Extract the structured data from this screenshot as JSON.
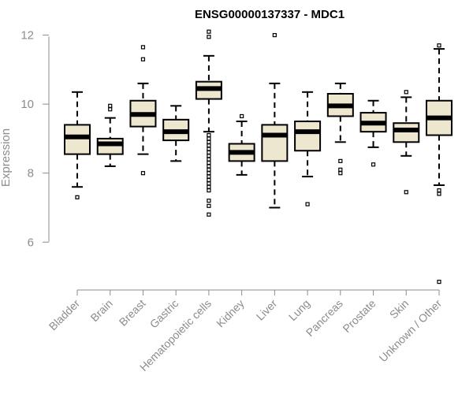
{
  "chart_data": {
    "type": "box",
    "title": "ENSG00000137337 - MDC1",
    "xlabel": "",
    "ylabel": "Expression",
    "ylim": [
      4.75,
      12.15
    ],
    "yticks": [
      "6",
      "8",
      "10",
      "12"
    ],
    "box_fill": "#ede7cf",
    "categories": [
      "Bladder",
      "Brain",
      "Breast",
      "Gastric",
      "Hematopoietic cells",
      "Kidney",
      "Liver",
      "Lung",
      "Pancreas",
      "Prostate",
      "Skin",
      "Unknown / Other"
    ],
    "series": [
      {
        "category": "Bladder",
        "whisker_low": 7.6,
        "q1": 8.55,
        "median": 9.05,
        "q3": 9.4,
        "whisker_high": 10.35,
        "outliers": [
          7.3
        ]
      },
      {
        "category": "Brain",
        "whisker_low": 8.2,
        "q1": 8.55,
        "median": 8.85,
        "q3": 9.0,
        "whisker_high": 9.6,
        "outliers": [
          9.85,
          9.95
        ]
      },
      {
        "category": "Breast",
        "whisker_low": 8.55,
        "q1": 9.35,
        "median": 9.7,
        "q3": 10.1,
        "whisker_high": 10.6,
        "outliers": [
          11.65,
          11.3,
          8.0
        ]
      },
      {
        "category": "Gastric",
        "whisker_low": 8.35,
        "q1": 8.95,
        "median": 9.2,
        "q3": 9.55,
        "whisker_high": 9.95,
        "outliers": []
      },
      {
        "category": "Hematopoietic cells",
        "whisker_low": 9.2,
        "q1": 10.15,
        "median": 10.45,
        "q3": 10.65,
        "whisker_high": 11.4,
        "outliers": [
          12.1,
          11.95,
          9.1,
          9.0,
          8.9,
          8.8,
          8.7,
          8.6,
          8.5,
          8.4,
          8.3,
          8.2,
          8.1,
          8.0,
          7.9,
          7.8,
          7.7,
          7.6,
          7.5,
          7.2,
          7.05,
          6.8
        ]
      },
      {
        "category": "Kidney",
        "whisker_low": 7.95,
        "q1": 8.35,
        "median": 8.6,
        "q3": 8.85,
        "whisker_high": 9.5,
        "outliers": [
          9.65
        ]
      },
      {
        "category": "Liver",
        "whisker_low": 7.0,
        "q1": 8.35,
        "median": 9.1,
        "q3": 9.4,
        "whisker_high": 10.6,
        "outliers": [
          12.0
        ]
      },
      {
        "category": "Lung",
        "whisker_low": 7.9,
        "q1": 8.65,
        "median": 9.2,
        "q3": 9.5,
        "whisker_high": 10.35,
        "outliers": [
          7.1
        ]
      },
      {
        "category": "Pancreas",
        "whisker_low": 8.9,
        "q1": 9.65,
        "median": 9.95,
        "q3": 10.3,
        "whisker_high": 10.6,
        "outliers": [
          8.35,
          8.1,
          8.0
        ]
      },
      {
        "category": "Prostate",
        "whisker_low": 8.75,
        "q1": 9.2,
        "median": 9.45,
        "q3": 9.75,
        "whisker_high": 10.1,
        "outliers": [
          8.25
        ]
      },
      {
        "category": "Skin",
        "whisker_low": 8.5,
        "q1": 8.9,
        "median": 9.25,
        "q3": 9.45,
        "whisker_high": 10.2,
        "outliers": [
          10.35,
          7.45
        ]
      },
      {
        "category": "Unknown / Other",
        "whisker_low": 7.65,
        "q1": 9.1,
        "median": 9.6,
        "q3": 10.1,
        "whisker_high": 11.6,
        "outliers": [
          11.7,
          7.5,
          7.4,
          4.85
        ]
      }
    ]
  }
}
